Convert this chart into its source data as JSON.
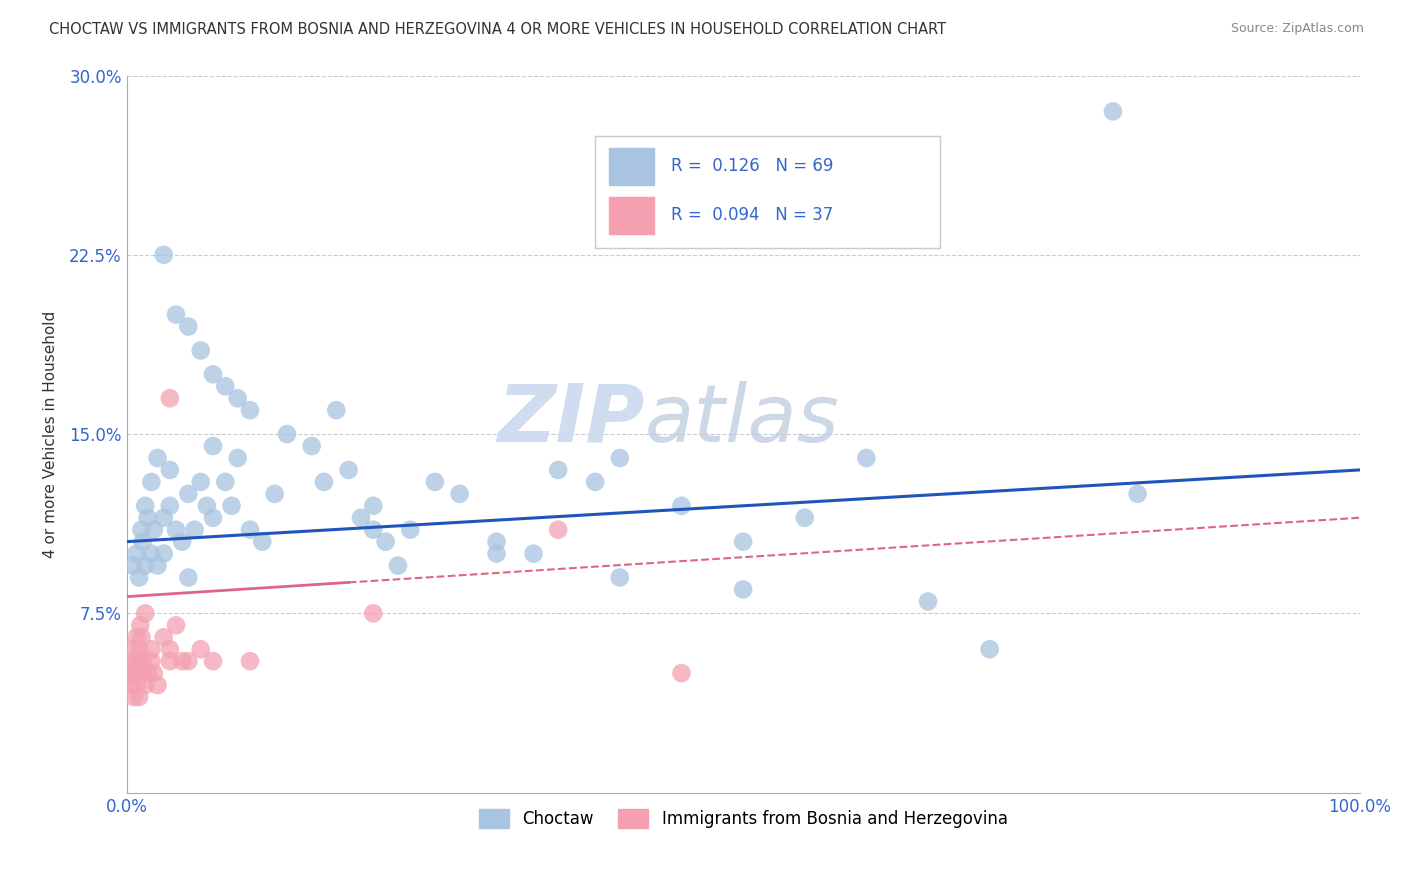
{
  "title": "CHOCTAW VS IMMIGRANTS FROM BOSNIA AND HERZEGOVINA 4 OR MORE VEHICLES IN HOUSEHOLD CORRELATION CHART",
  "source": "Source: ZipAtlas.com",
  "ylabel": "4 or more Vehicles in Household",
  "xlim": [
    0.0,
    100.0
  ],
  "ylim": [
    0.0,
    30.0
  ],
  "xticklabels": [
    "0.0%",
    "100.0%"
  ],
  "yticks": [
    7.5,
    15.0,
    22.5,
    30.0
  ],
  "yticklabels": [
    "7.5%",
    "15.0%",
    "22.5%",
    "30.0%"
  ],
  "blue_R": 0.126,
  "blue_N": 69,
  "pink_R": 0.094,
  "pink_N": 37,
  "blue_color": "#a8c4e0",
  "pink_color": "#f4a0b0",
  "blue_line_color": "#2255bb",
  "pink_line_color": "#dd6688",
  "watermark_zip": "ZIP",
  "watermark_atlas": "atlas",
  "legend_label_blue": "Choctaw",
  "legend_label_pink": "Immigrants from Bosnia and Herzegovina",
  "blue_x": [
    0.5,
    0.8,
    1.0,
    1.2,
    1.3,
    1.5,
    1.5,
    1.7,
    2.0,
    2.0,
    2.2,
    2.5,
    2.5,
    3.0,
    3.0,
    3.5,
    3.5,
    4.0,
    4.5,
    5.0,
    5.0,
    5.5,
    6.0,
    6.5,
    7.0,
    7.0,
    8.0,
    8.5,
    9.0,
    10.0,
    11.0,
    12.0,
    13.0,
    15.0,
    16.0,
    17.0,
    18.0,
    19.0,
    20.0,
    21.0,
    22.0,
    23.0,
    25.0,
    27.0,
    30.0,
    33.0,
    35.0,
    38.0,
    40.0,
    45.0,
    50.0,
    55.0,
    60.0,
    65.0,
    70.0,
    80.0,
    82.0,
    3.0,
    4.0,
    5.0,
    6.0,
    7.0,
    8.0,
    9.0,
    10.0,
    20.0,
    30.0,
    40.0,
    50.0
  ],
  "blue_y": [
    9.5,
    10.0,
    9.0,
    11.0,
    10.5,
    9.5,
    12.0,
    11.5,
    10.0,
    13.0,
    11.0,
    9.5,
    14.0,
    10.0,
    11.5,
    12.0,
    13.5,
    11.0,
    10.5,
    12.5,
    9.0,
    11.0,
    13.0,
    12.0,
    14.5,
    11.5,
    13.0,
    12.0,
    14.0,
    11.0,
    10.5,
    12.5,
    15.0,
    14.5,
    13.0,
    16.0,
    13.5,
    11.5,
    12.0,
    10.5,
    9.5,
    11.0,
    13.0,
    12.5,
    10.5,
    10.0,
    13.5,
    13.0,
    14.0,
    12.0,
    10.5,
    11.5,
    14.0,
    8.0,
    6.0,
    28.5,
    12.5,
    22.5,
    20.0,
    19.5,
    18.5,
    17.5,
    17.0,
    16.5,
    16.0,
    11.0,
    10.0,
    9.0,
    8.5
  ],
  "pink_x": [
    0.3,
    0.4,
    0.5,
    0.5,
    0.6,
    0.6,
    0.7,
    0.8,
    0.8,
    0.9,
    1.0,
    1.0,
    1.0,
    1.1,
    1.2,
    1.2,
    1.3,
    1.5,
    1.5,
    1.7,
    2.0,
    2.0,
    2.2,
    2.5,
    3.0,
    3.5,
    3.5,
    4.0,
    4.5,
    5.0,
    6.0,
    7.0,
    10.0,
    20.0,
    35.0,
    45.0,
    3.5
  ],
  "pink_y": [
    5.0,
    4.5,
    5.5,
    6.0,
    4.0,
    5.0,
    5.5,
    4.5,
    6.5,
    5.0,
    5.5,
    6.0,
    4.0,
    7.0,
    5.0,
    6.5,
    5.5,
    7.5,
    4.5,
    5.0,
    6.0,
    5.5,
    5.0,
    4.5,
    6.5,
    6.0,
    5.5,
    7.0,
    5.5,
    5.5,
    6.0,
    5.5,
    5.5,
    7.5,
    11.0,
    5.0,
    16.5
  ]
}
